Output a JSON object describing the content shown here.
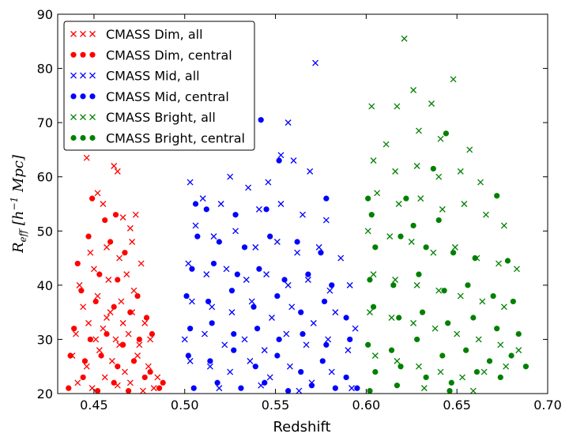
{
  "chart_data": {
    "type": "scatter",
    "title": "",
    "xlabel": "Redshift",
    "ylabel": "R_eff [h^-1 Mpc]",
    "ylabel_display": "R",
    "ylabel_sub": "eff",
    "ylabel_rest": " [h",
    "ylabel_sup": "−1",
    "ylabel_end": " Mpc]",
    "xlim": [
      0.43,
      0.7
    ],
    "ylim": [
      20,
      90
    ],
    "xticks": [
      0.45,
      0.5,
      0.55,
      0.6,
      0.65,
      0.7
    ],
    "xtick_labels": [
      "0.45",
      "0.50",
      "0.55",
      "0.60",
      "0.65",
      "0.70"
    ],
    "yticks": [
      20,
      30,
      40,
      50,
      60,
      70,
      80,
      90
    ],
    "ytick_labels": [
      "20",
      "30",
      "40",
      "50",
      "60",
      "70",
      "80",
      "90"
    ],
    "legend_position": "top-left",
    "series": [
      {
        "name": "CMASS Dim, all",
        "marker": "x",
        "color": "#ff0000",
        "points": [
          [
            0.446,
            63.5
          ],
          [
            0.452,
            57
          ],
          [
            0.455,
            55
          ],
          [
            0.461,
            62
          ],
          [
            0.463,
            61
          ],
          [
            0.466,
            52.5
          ],
          [
            0.47,
            50.5
          ],
          [
            0.473,
            53
          ],
          [
            0.448,
            46
          ],
          [
            0.457,
            47
          ],
          [
            0.464,
            45
          ],
          [
            0.471,
            48
          ],
          [
            0.442,
            40
          ],
          [
            0.45,
            43
          ],
          [
            0.458,
            41
          ],
          [
            0.468,
            42
          ],
          [
            0.476,
            44
          ],
          [
            0.444,
            36
          ],
          [
            0.452,
            38
          ],
          [
            0.459,
            35
          ],
          [
            0.465,
            37
          ],
          [
            0.472,
            39
          ],
          [
            0.478,
            33
          ],
          [
            0.44,
            31
          ],
          [
            0.447,
            33
          ],
          [
            0.455,
            32
          ],
          [
            0.462,
            30
          ],
          [
            0.469,
            31
          ],
          [
            0.475,
            29
          ],
          [
            0.481,
            30
          ],
          [
            0.438,
            27
          ],
          [
            0.446,
            25
          ],
          [
            0.453,
            28
          ],
          [
            0.46,
            26
          ],
          [
            0.467,
            24
          ],
          [
            0.474,
            27
          ],
          [
            0.48,
            25
          ],
          [
            0.485,
            23
          ],
          [
            0.441,
            22
          ],
          [
            0.449,
            21
          ],
          [
            0.456,
            23
          ],
          [
            0.463,
            21.5
          ],
          [
            0.47,
            22
          ],
          [
            0.477,
            20.5
          ],
          [
            0.483,
            21
          ],
          [
            0.457,
            34
          ],
          [
            0.464,
            29
          ],
          [
            0.471,
            35
          ],
          [
            0.451,
            30
          ],
          [
            0.466,
            33
          ]
        ]
      },
      {
        "name": "CMASS Dim, central",
        "marker": "o",
        "color": "#ff0000",
        "points": [
          [
            0.449,
            56
          ],
          [
            0.456,
            52
          ],
          [
            0.462,
            53
          ],
          [
            0.447,
            49
          ],
          [
            0.459,
            48
          ],
          [
            0.467,
            46
          ],
          [
            0.441,
            44
          ],
          [
            0.453,
            42
          ],
          [
            0.463,
            41
          ],
          [
            0.474,
            38
          ],
          [
            0.443,
            39
          ],
          [
            0.451,
            37
          ],
          [
            0.461,
            36
          ],
          [
            0.47,
            35
          ],
          [
            0.479,
            34
          ],
          [
            0.439,
            32
          ],
          [
            0.448,
            30
          ],
          [
            0.457,
            31
          ],
          [
            0.466,
            29
          ],
          [
            0.475,
            30
          ],
          [
            0.482,
            31
          ],
          [
            0.437,
            27
          ],
          [
            0.445,
            26
          ],
          [
            0.454,
            27
          ],
          [
            0.463,
            25
          ],
          [
            0.472,
            26
          ],
          [
            0.481,
            24
          ],
          [
            0.488,
            22
          ],
          [
            0.436,
            21
          ],
          [
            0.444,
            23
          ],
          [
            0.452,
            20.5
          ],
          [
            0.461,
            22
          ],
          [
            0.469,
            20.5
          ],
          [
            0.478,
            23
          ],
          [
            0.486,
            21
          ]
        ]
      },
      {
        "name": "CMASS Mid, all",
        "marker": "x",
        "color": "#0000ff",
        "points": [
          [
            0.572,
            81
          ],
          [
            0.557,
            70
          ],
          [
            0.553,
            64
          ],
          [
            0.56,
            63
          ],
          [
            0.569,
            61
          ],
          [
            0.503,
            59
          ],
          [
            0.525,
            60
          ],
          [
            0.535,
            58
          ],
          [
            0.546,
            59
          ],
          [
            0.51,
            56
          ],
          [
            0.52,
            55
          ],
          [
            0.541,
            54
          ],
          [
            0.553,
            55
          ],
          [
            0.565,
            53
          ],
          [
            0.578,
            52
          ],
          [
            0.506,
            51
          ],
          [
            0.516,
            49
          ],
          [
            0.528,
            50
          ],
          [
            0.539,
            47
          ],
          [
            0.551,
            48
          ],
          [
            0.562,
            46
          ],
          [
            0.574,
            47
          ],
          [
            0.586,
            45
          ],
          [
            0.502,
            44
          ],
          [
            0.512,
            42
          ],
          [
            0.523,
            43
          ],
          [
            0.534,
            41
          ],
          [
            0.545,
            42
          ],
          [
            0.557,
            40
          ],
          [
            0.568,
            41
          ],
          [
            0.58,
            39
          ],
          [
            0.591,
            40
          ],
          [
            0.504,
            37
          ],
          [
            0.515,
            36
          ],
          [
            0.526,
            35
          ],
          [
            0.537,
            37
          ],
          [
            0.548,
            34
          ],
          [
            0.559,
            36
          ],
          [
            0.571,
            33
          ],
          [
            0.583,
            35
          ],
          [
            0.594,
            32
          ],
          [
            0.5,
            30
          ],
          [
            0.511,
            31
          ],
          [
            0.522,
            29
          ],
          [
            0.533,
            30
          ],
          [
            0.544,
            28
          ],
          [
            0.556,
            31
          ],
          [
            0.567,
            29
          ],
          [
            0.579,
            30
          ],
          [
            0.59,
            28
          ],
          [
            0.503,
            26
          ],
          [
            0.514,
            25
          ],
          [
            0.525,
            24
          ],
          [
            0.536,
            26
          ],
          [
            0.547,
            23
          ],
          [
            0.558,
            25
          ],
          [
            0.57,
            22
          ],
          [
            0.581,
            24
          ],
          [
            0.592,
            21
          ],
          [
            0.519,
            21
          ],
          [
            0.542,
            21.5
          ],
          [
            0.563,
            20.5
          ]
        ]
      },
      {
        "name": "CMASS Mid, central",
        "marker": "o",
        "color": "#0000ff",
        "points": [
          [
            0.542,
            70.5
          ],
          [
            0.552,
            63
          ],
          [
            0.578,
            56
          ],
          [
            0.506,
            55
          ],
          [
            0.512,
            54
          ],
          [
            0.528,
            53
          ],
          [
            0.545,
            54
          ],
          [
            0.507,
            49
          ],
          [
            0.519,
            48
          ],
          [
            0.533,
            47
          ],
          [
            0.547,
            49
          ],
          [
            0.562,
            48
          ],
          [
            0.575,
            46
          ],
          [
            0.504,
            43
          ],
          [
            0.516,
            44
          ],
          [
            0.529,
            42
          ],
          [
            0.541,
            43
          ],
          [
            0.555,
            41
          ],
          [
            0.568,
            42
          ],
          [
            0.581,
            40
          ],
          [
            0.501,
            38
          ],
          [
            0.513,
            37
          ],
          [
            0.526,
            39
          ],
          [
            0.538,
            36
          ],
          [
            0.551,
            38
          ],
          [
            0.564,
            35
          ],
          [
            0.577,
            37
          ],
          [
            0.589,
            34
          ],
          [
            0.503,
            32
          ],
          [
            0.515,
            33
          ],
          [
            0.527,
            31
          ],
          [
            0.54,
            32
          ],
          [
            0.552,
            30
          ],
          [
            0.565,
            31
          ],
          [
            0.578,
            29
          ],
          [
            0.591,
            30
          ],
          [
            0.502,
            27
          ],
          [
            0.514,
            26
          ],
          [
            0.527,
            28
          ],
          [
            0.539,
            25
          ],
          [
            0.551,
            27
          ],
          [
            0.564,
            24
          ],
          [
            0.576,
            26
          ],
          [
            0.589,
            23
          ],
          [
            0.505,
            21
          ],
          [
            0.518,
            22
          ],
          [
            0.531,
            21
          ],
          [
            0.544,
            22
          ],
          [
            0.557,
            20.5
          ],
          [
            0.57,
            21.5
          ],
          [
            0.583,
            21
          ],
          [
            0.595,
            21
          ]
        ]
      },
      {
        "name": "CMASS Bright, all",
        "marker": "x",
        "color": "#008000",
        "points": [
          [
            0.621,
            85.5
          ],
          [
            0.626,
            76
          ],
          [
            0.648,
            78
          ],
          [
            0.617,
            73
          ],
          [
            0.603,
            73
          ],
          [
            0.636,
            73.5
          ],
          [
            0.611,
            66
          ],
          [
            0.629,
            68.5
          ],
          [
            0.641,
            67
          ],
          [
            0.657,
            65
          ],
          [
            0.604,
            63
          ],
          [
            0.616,
            61
          ],
          [
            0.628,
            62
          ],
          [
            0.64,
            60
          ],
          [
            0.652,
            61
          ],
          [
            0.663,
            59
          ],
          [
            0.606,
            57
          ],
          [
            0.618,
            55
          ],
          [
            0.63,
            56
          ],
          [
            0.642,
            54
          ],
          [
            0.654,
            55
          ],
          [
            0.666,
            53
          ],
          [
            0.676,
            51
          ],
          [
            0.601,
            50
          ],
          [
            0.613,
            49
          ],
          [
            0.625,
            48
          ],
          [
            0.637,
            46
          ],
          [
            0.649,
            47
          ],
          [
            0.661,
            45
          ],
          [
            0.673,
            44
          ],
          [
            0.683,
            43
          ],
          [
            0.604,
            42
          ],
          [
            0.616,
            41
          ],
          [
            0.628,
            40
          ],
          [
            0.64,
            39
          ],
          [
            0.652,
            38
          ],
          [
            0.664,
            37
          ],
          [
            0.676,
            36
          ],
          [
            0.602,
            35
          ],
          [
            0.614,
            34
          ],
          [
            0.626,
            33
          ],
          [
            0.638,
            32
          ],
          [
            0.65,
            31
          ],
          [
            0.662,
            30
          ],
          [
            0.674,
            29
          ],
          [
            0.684,
            28
          ],
          [
            0.605,
            27
          ],
          [
            0.617,
            26
          ],
          [
            0.629,
            25
          ],
          [
            0.641,
            24
          ],
          [
            0.653,
            23
          ],
          [
            0.665,
            24
          ],
          [
            0.677,
            25
          ],
          [
            0.632,
            21
          ],
          [
            0.659,
            20.5
          ]
        ]
      },
      {
        "name": "CMASS Bright, central",
        "marker": "o",
        "color": "#008000",
        "points": [
          [
            0.644,
            68
          ],
          [
            0.637,
            61.5
          ],
          [
            0.672,
            56.5
          ],
          [
            0.601,
            56
          ],
          [
            0.622,
            56
          ],
          [
            0.603,
            53
          ],
          [
            0.626,
            51
          ],
          [
            0.64,
            52
          ],
          [
            0.605,
            47
          ],
          [
            0.619,
            49
          ],
          [
            0.633,
            47
          ],
          [
            0.648,
            46
          ],
          [
            0.66,
            45
          ],
          [
            0.678,
            44.5
          ],
          [
            0.602,
            41
          ],
          [
            0.615,
            40
          ],
          [
            0.629,
            42
          ],
          [
            0.643,
            39
          ],
          [
            0.656,
            40
          ],
          [
            0.67,
            38
          ],
          [
            0.681,
            37
          ],
          [
            0.604,
            36
          ],
          [
            0.618,
            34
          ],
          [
            0.631,
            35
          ],
          [
            0.645,
            33
          ],
          [
            0.659,
            34
          ],
          [
            0.672,
            32
          ],
          [
            0.684,
            31
          ],
          [
            0.601,
            29
          ],
          [
            0.614,
            28
          ],
          [
            0.628,
            30
          ],
          [
            0.642,
            27
          ],
          [
            0.655,
            28
          ],
          [
            0.668,
            26
          ],
          [
            0.68,
            27
          ],
          [
            0.688,
            25
          ],
          [
            0.605,
            24
          ],
          [
            0.619,
            25
          ],
          [
            0.633,
            23
          ],
          [
            0.647,
            22
          ],
          [
            0.661,
            24
          ],
          [
            0.674,
            23
          ],
          [
            0.602,
            20.5
          ],
          [
            0.617,
            21.5
          ],
          [
            0.646,
            20.5
          ]
        ]
      }
    ]
  }
}
